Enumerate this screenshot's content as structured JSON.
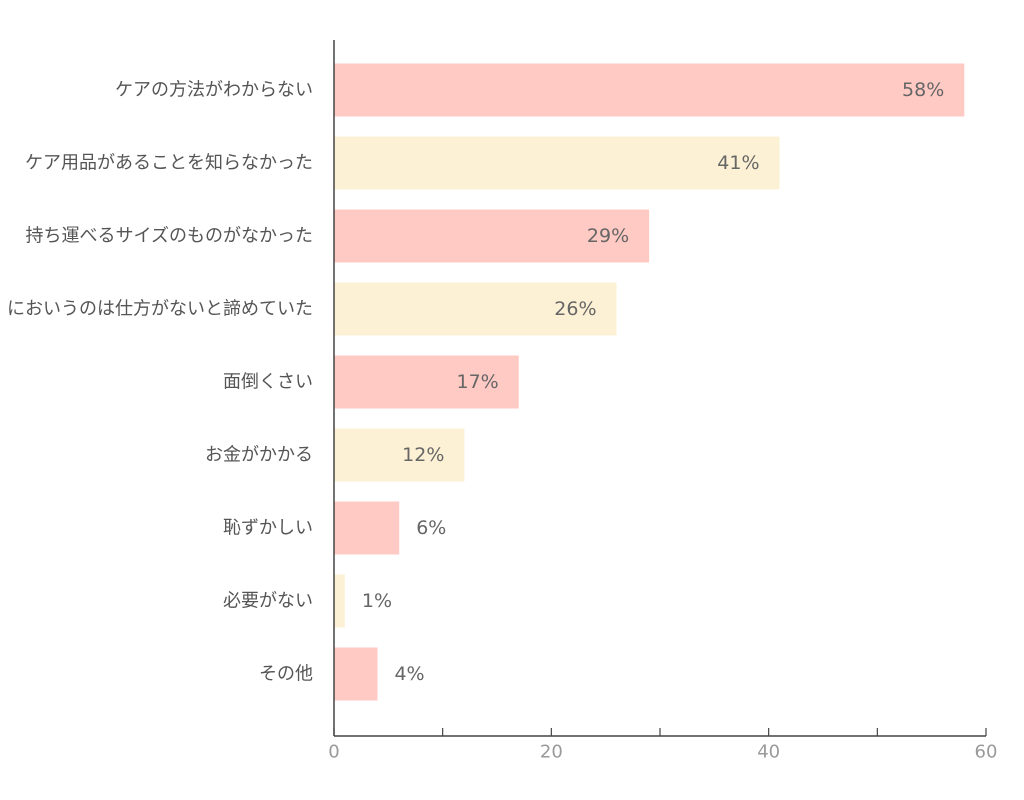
{
  "chart_data": {
    "type": "bar",
    "orientation": "horizontal",
    "categories": [
      "ケアの方法がわからない",
      "ケア用品があることを知らなかった",
      "持ち運べるサイズのものがなかった",
      "においうのは仕方がないと諦めていた",
      "面倒くさい",
      "お金がかかる",
      "恥ずかしい",
      "必要がない",
      "その他"
    ],
    "values": [
      58,
      41,
      29,
      26,
      17,
      12,
      6,
      1,
      4
    ],
    "value_labels": [
      "58%",
      "41%",
      "29%",
      "26%",
      "17%",
      "12%",
      "6%",
      "1%",
      "4%"
    ],
    "bar_colors": [
      "#ffc9c4",
      "#fdf1d5",
      "#ffc9c4",
      "#fdf1d5",
      "#ffc9c4",
      "#fdf1d5",
      "#ffc9c4",
      "#fdf1d5",
      "#ffc9c4"
    ],
    "xlim": [
      0,
      60
    ],
    "xticks": [
      0,
      10,
      20,
      30,
      40,
      50,
      60
    ],
    "xtick_labels": [
      "0",
      "",
      "20",
      "",
      "40",
      "",
      "60"
    ],
    "title": "",
    "xlabel": "",
    "ylabel": "",
    "grid": false,
    "legend": "none"
  }
}
